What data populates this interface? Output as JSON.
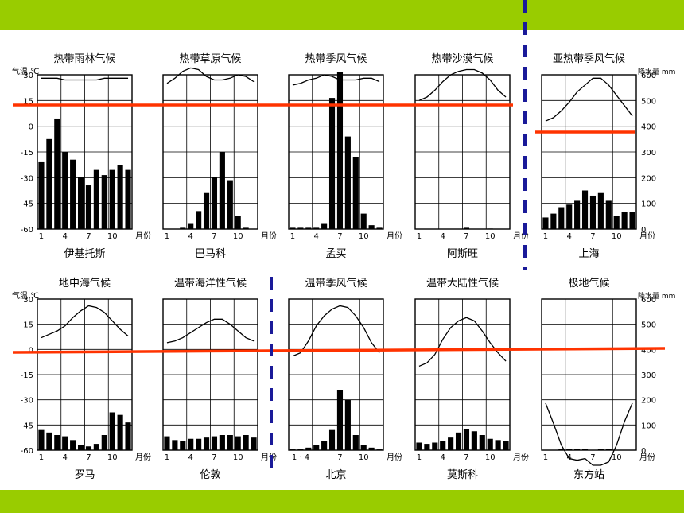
{
  "chart_data": [
    {
      "type": "bar+line",
      "title": "热带雨林气候",
      "city": "伊基托斯",
      "temp": [
        28,
        28,
        28,
        27,
        27,
        27,
        27,
        27,
        28,
        28,
        28,
        28
      ],
      "precip": [
        260,
        350,
        430,
        300,
        270,
        200,
        170,
        230,
        210,
        230,
        250,
        230
      ],
      "tlim": [
        -60,
        30
      ],
      "plim": [
        0,
        600
      ],
      "xticks": [
        "1",
        "4",
        "7",
        "10"
      ],
      "month_unit": "月份",
      "left_axis_title": "气温 ℃",
      "left_ticks": [
        "30",
        "15",
        "0",
        "-15",
        "-30",
        "-45",
        "-60"
      ]
    },
    {
      "type": "bar+line",
      "title": "热带草原气候",
      "city": "巴马科",
      "temp": [
        25,
        28,
        32,
        34,
        33,
        29,
        27,
        27,
        28,
        30,
        29,
        26
      ],
      "precip": [
        0,
        0,
        5,
        20,
        70,
        140,
        200,
        300,
        190,
        50,
        5,
        0
      ],
      "tlim": [
        -60,
        30
      ],
      "plim": [
        0,
        600
      ],
      "xticks": [
        "1",
        "4",
        "7",
        "10"
      ],
      "month_unit": "月份"
    },
    {
      "type": "bar+line",
      "title": "热带季风气候",
      "city": "孟买",
      "temp": [
        24,
        25,
        27,
        28,
        30,
        29,
        27,
        27,
        27,
        28,
        28,
        26
      ],
      "precip": [
        5,
        5,
        5,
        5,
        20,
        510,
        610,
        360,
        280,
        60,
        15,
        5
      ],
      "tlim": [
        -60,
        30
      ],
      "plim": [
        0,
        600
      ],
      "xticks": [
        "1",
        "4",
        "7",
        "10"
      ],
      "month_unit": "月份"
    },
    {
      "type": "bar+line",
      "title": "热带沙漠气候",
      "city": "阿斯旺",
      "temp": [
        15,
        17,
        21,
        26,
        30,
        32,
        33,
        33,
        31,
        27,
        21,
        17
      ],
      "precip": [
        0,
        0,
        0,
        0,
        0,
        0,
        5,
        0,
        0,
        2,
        0,
        0
      ],
      "tlim": [
        -60,
        30
      ],
      "plim": [
        0,
        600
      ],
      "xticks": [
        "1",
        "4",
        "7",
        "10"
      ],
      "month_unit": "月份"
    },
    {
      "type": "bar+line",
      "title": "亚热带季风气候",
      "city": "上海",
      "temp": [
        3,
        5,
        9,
        14,
        20,
        24,
        28,
        28,
        24,
        18,
        12,
        6
      ],
      "precip": [
        45,
        60,
        85,
        95,
        110,
        150,
        130,
        140,
        110,
        50,
        65,
        65
      ],
      "tlim": [
        -60,
        30
      ],
      "plim": [
        0,
        600
      ],
      "xticks": [
        "1",
        "4",
        "7",
        "10"
      ],
      "month_unit": "月份",
      "right_axis_title": "降水量 mm",
      "right_ticks": [
        "600",
        "500",
        "400",
        "300",
        "200",
        "100",
        "0"
      ]
    },
    {
      "type": "bar+line",
      "title": "地中海气候",
      "city": "罗马",
      "temp": [
        7,
        9,
        11,
        14,
        19,
        23,
        26,
        25,
        22,
        17,
        12,
        8
      ],
      "precip": [
        80,
        70,
        60,
        55,
        40,
        20,
        15,
        25,
        60,
        150,
        140,
        110
      ],
      "tlim": [
        -60,
        30
      ],
      "plim": [
        0,
        600
      ],
      "xticks": [
        "1",
        "4",
        "7",
        "10"
      ],
      "month_unit": "月份",
      "left_axis_title": "气温 ℃",
      "left_ticks": [
        "30",
        "15",
        "0",
        "-15",
        "-30",
        "-45",
        "-60"
      ]
    },
    {
      "type": "bar+line",
      "title": "温带海洋性气候",
      "city": "伦敦",
      "temp": [
        4,
        5,
        7,
        10,
        13,
        16,
        18,
        18,
        15,
        11,
        7,
        5
      ],
      "precip": [
        55,
        40,
        35,
        45,
        45,
        50,
        55,
        60,
        60,
        55,
        60,
        50
      ],
      "tlim": [
        -60,
        30
      ],
      "plim": [
        0,
        600
      ],
      "xticks": [
        "1",
        "4",
        "7",
        "10"
      ],
      "month_unit": "月份"
    },
    {
      "type": "bar+line",
      "title": "温带季风气候",
      "city": "北京",
      "temp": [
        -4,
        -2,
        5,
        14,
        20,
        24,
        26,
        25,
        20,
        13,
        4,
        -2
      ],
      "precip": [
        3,
        5,
        10,
        20,
        35,
        80,
        240,
        200,
        60,
        20,
        10,
        3
      ],
      "tlim": [
        -60,
        30
      ],
      "plim": [
        0,
        600
      ],
      "xticks": [
        "1",
        "4",
        "7",
        "10"
      ],
      "month_unit": "月份",
      "xticks_label": [
        "1 · 4",
        "7",
        "10"
      ]
    },
    {
      "type": "bar+line",
      "title": "温带大陆性气候",
      "city": "莫斯科",
      "temp": [
        -10,
        -8,
        -3,
        6,
        13,
        17,
        19,
        17,
        11,
        4,
        -2,
        -7
      ],
      "precip": [
        30,
        25,
        30,
        35,
        50,
        70,
        85,
        75,
        60,
        45,
        40,
        35
      ],
      "tlim": [
        -60,
        30
      ],
      "plim": [
        0,
        600
      ],
      "xticks": [
        "1",
        "4",
        "7",
        "10"
      ],
      "month_unit": "月份"
    },
    {
      "type": "bar+line",
      "title": "极地气候",
      "city": "东方站",
      "temp": [
        -32,
        -44,
        -57,
        -65,
        -66,
        -65,
        -69,
        -69,
        -67,
        -57,
        -43,
        -32
      ],
      "precip": [
        0,
        0,
        5,
        5,
        5,
        5,
        0,
        5,
        5,
        0,
        0,
        0
      ],
      "tlim": [
        -60,
        30
      ],
      "plim": [
        0,
        600
      ],
      "xticks": [
        "1",
        "4",
        "7",
        "10"
      ],
      "month_unit": "月份",
      "right_axis_title": "降水量 mm",
      "right_ticks": [
        "600",
        "500",
        "400",
        "300",
        "200",
        "100",
        "0"
      ]
    }
  ],
  "colors": {
    "band": "#99cc00",
    "marker_red": "#ff3300",
    "marker_blue": "#1a1a99",
    "ink": "#000000"
  }
}
